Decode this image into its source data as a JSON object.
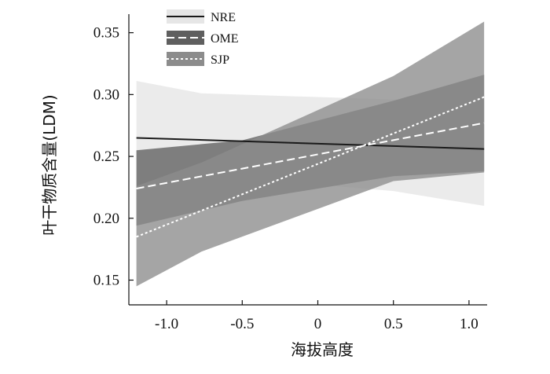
{
  "chart_data": {
    "type": "line",
    "xlabel": "海拔高度",
    "ylabel": "叶干物质含量(LDM)",
    "xlim": [
      -1.25,
      1.12
    ],
    "ylim": [
      0.13,
      0.365
    ],
    "xticks": [
      -1.0,
      -0.5,
      0,
      0.5,
      1.0
    ],
    "xtick_labels": [
      "-1.0",
      "-0.5",
      "0",
      "0.5",
      "1.0"
    ],
    "yticks": [
      0.15,
      0.2,
      0.25,
      0.3,
      0.35
    ],
    "ytick_labels": [
      "0.15",
      "0.20",
      "0.25",
      "0.30",
      "0.35"
    ],
    "grid": false,
    "legend": "top-left",
    "series": [
      {
        "name": "NRE",
        "line_style": "solid",
        "line_color": "#1a1a1a",
        "band_color": "#e6e6e6",
        "x": [
          -1.2,
          1.1
        ],
        "y": [
          0.265,
          0.256
        ],
        "band": {
          "x": [
            -1.2,
            -0.77,
            0.5,
            1.1
          ],
          "upper": [
            0.311,
            0.301,
            0.296,
            0.295
          ],
          "lower": [
            0.223,
            0.235,
            0.222,
            0.21
          ]
        }
      },
      {
        "name": "OME",
        "line_style": "dashed",
        "line_color": "#ffffff",
        "band_color": "#5f5f5f",
        "x": [
          -1.2,
          1.1
        ],
        "y": [
          0.224,
          0.277
        ],
        "band": {
          "x": [
            -1.2,
            -0.5,
            0.5,
            1.1
          ],
          "upper": [
            0.255,
            0.263,
            0.295,
            0.316
          ],
          "lower": [
            0.194,
            0.214,
            0.234,
            0.238
          ]
        }
      },
      {
        "name": "SJP",
        "line_style": "dotted",
        "line_color": "#ffffff",
        "band_color": "#8c8c8c",
        "x": [
          -1.2,
          1.1
        ],
        "y": [
          0.185,
          0.298
        ],
        "band": {
          "x": [
            -1.2,
            -0.77,
            0.5,
            1.1
          ],
          "upper": [
            0.226,
            0.245,
            0.315,
            0.359
          ],
          "lower": [
            0.145,
            0.173,
            0.23,
            0.237
          ]
        }
      }
    ]
  }
}
